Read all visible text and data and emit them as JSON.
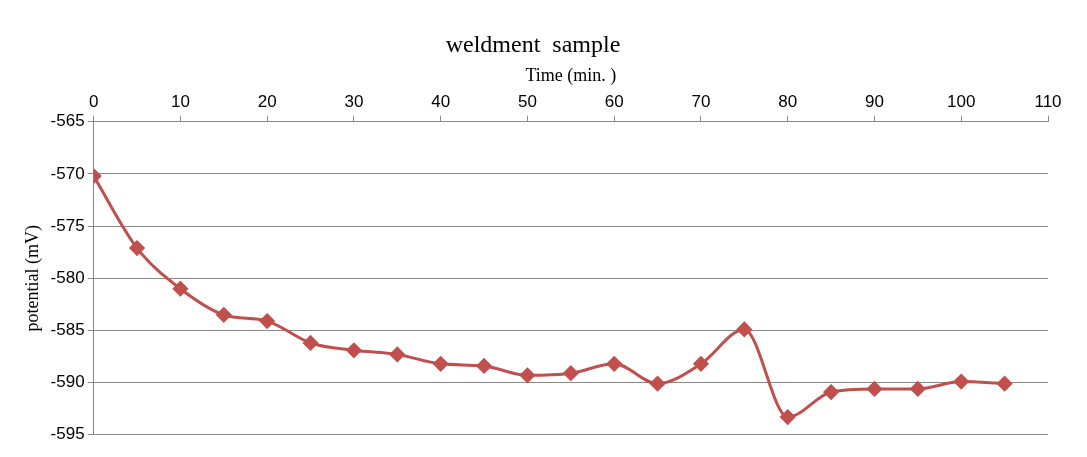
{
  "chart_data": {
    "type": "line",
    "title": "weldment  sample",
    "xlabel": "Time (min. )",
    "ylabel": "potential (mV)",
    "x": [
      0,
      5,
      10,
      15,
      20,
      25,
      30,
      35,
      40,
      45,
      50,
      55,
      60,
      65,
      70,
      75,
      80,
      85,
      90,
      95,
      100,
      105
    ],
    "series": [
      {
        "color": "#c0504d",
        "values": [
          -570.2,
          -577.1,
          -581.0,
          -583.5,
          -584.1,
          -586.2,
          -586.9,
          -587.3,
          -588.2,
          -588.4,
          -589.3,
          -589.1,
          -588.2,
          -590.1,
          -588.2,
          -584.9,
          -593.3,
          -590.9,
          -590.6,
          -590.6,
          -589.9,
          -590.1
        ]
      }
    ],
    "xlim": [
      0,
      110
    ],
    "xticks": [
      0,
      10,
      20,
      30,
      40,
      50,
      60,
      70,
      80,
      90,
      100,
      110
    ],
    "ylim": [
      -595,
      -565
    ],
    "yticks": [
      -595,
      -590,
      -585,
      -580,
      -575,
      -570,
      -565
    ],
    "grid": "y",
    "legend": false,
    "marker": "diamond",
    "line_style": "solid"
  }
}
